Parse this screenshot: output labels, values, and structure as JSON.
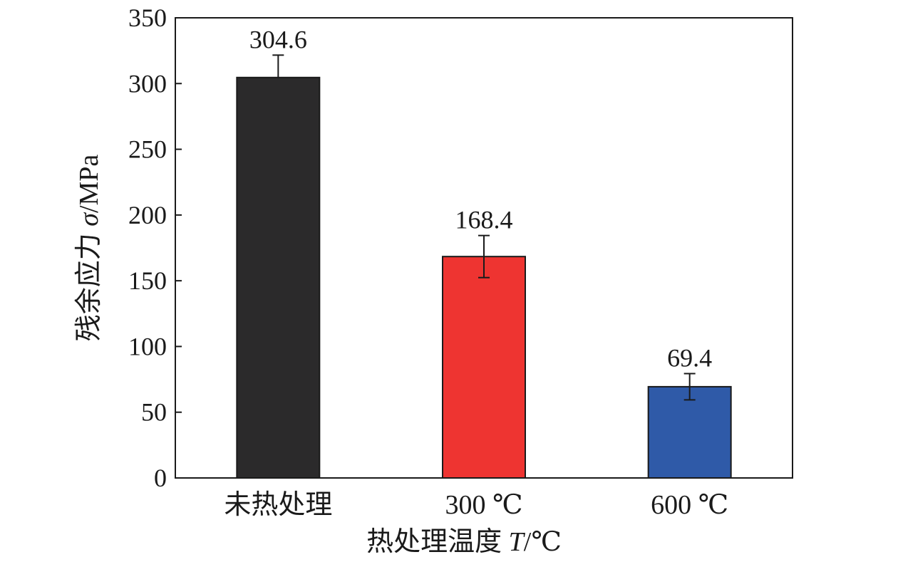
{
  "chart_data": {
    "type": "bar",
    "categories": [
      "未热处理",
      "300 ℃",
      "600 ℃"
    ],
    "values": [
      304.6,
      168.4,
      69.4
    ],
    "error_plus": [
      17,
      16,
      10
    ],
    "error_minus": [
      0,
      16,
      10
    ],
    "value_labels": [
      "304.6",
      "168.4",
      "69.4"
    ],
    "colors": [
      "#2b2a2b",
      "#ee3431",
      "#2f5aa8"
    ],
    "xlabel": {
      "main": "热处理温度 ",
      "var": "T",
      "unit": "/℃"
    },
    "ylabel": {
      "main": "残余应力 ",
      "var": "σ",
      "unit": "/MPa"
    },
    "ylim": [
      0,
      350
    ],
    "yticks": [
      0,
      50,
      100,
      150,
      200,
      250,
      300,
      350
    ],
    "ytick_labels": [
      "0",
      "50",
      "100",
      "150",
      "200",
      "250",
      "300",
      "350"
    ],
    "grid": false,
    "legend": "none"
  }
}
